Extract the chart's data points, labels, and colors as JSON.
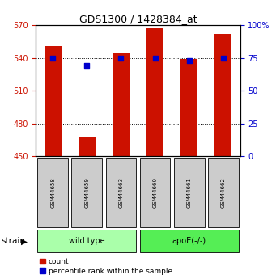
{
  "title": "GDS1300 / 1428384_at",
  "samples": [
    "GSM44658",
    "GSM44659",
    "GSM44663",
    "GSM44660",
    "GSM44661",
    "GSM44662"
  ],
  "counts": [
    551,
    468,
    544,
    567,
    539,
    562
  ],
  "percentiles": [
    75,
    69,
    75,
    75,
    73,
    75
  ],
  "ylim_left": [
    450,
    570
  ],
  "ylim_right": [
    0,
    100
  ],
  "yticks_left": [
    450,
    480,
    510,
    540,
    570
  ],
  "yticks_right": [
    0,
    25,
    50,
    75,
    100
  ],
  "ytick_labels_right": [
    "0",
    "25",
    "50",
    "75",
    "100%"
  ],
  "bar_color": "#CC1100",
  "dot_color": "#0000CC",
  "bar_width": 0.5,
  "group1_label": "wild type",
  "group2_label": "apoE(-/-)",
  "group1_indices": [
    0,
    1,
    2
  ],
  "group2_indices": [
    3,
    4,
    5
  ],
  "group1_color": "#AAFFAA",
  "group2_color": "#55EE55",
  "sample_box_color": "#CCCCCC",
  "strain_label": "strain",
  "legend_count_label": "count",
  "legend_percentile_label": "percentile rank within the sample",
  "ax_bg": "#FFFFFF",
  "left_tick_color": "#CC1100",
  "right_tick_color": "#0000CC",
  "title_fontsize": 9,
  "tick_fontsize": 7,
  "sample_fontsize": 5,
  "group_fontsize": 7,
  "legend_fontsize": 6.5,
  "strain_fontsize": 7.5
}
